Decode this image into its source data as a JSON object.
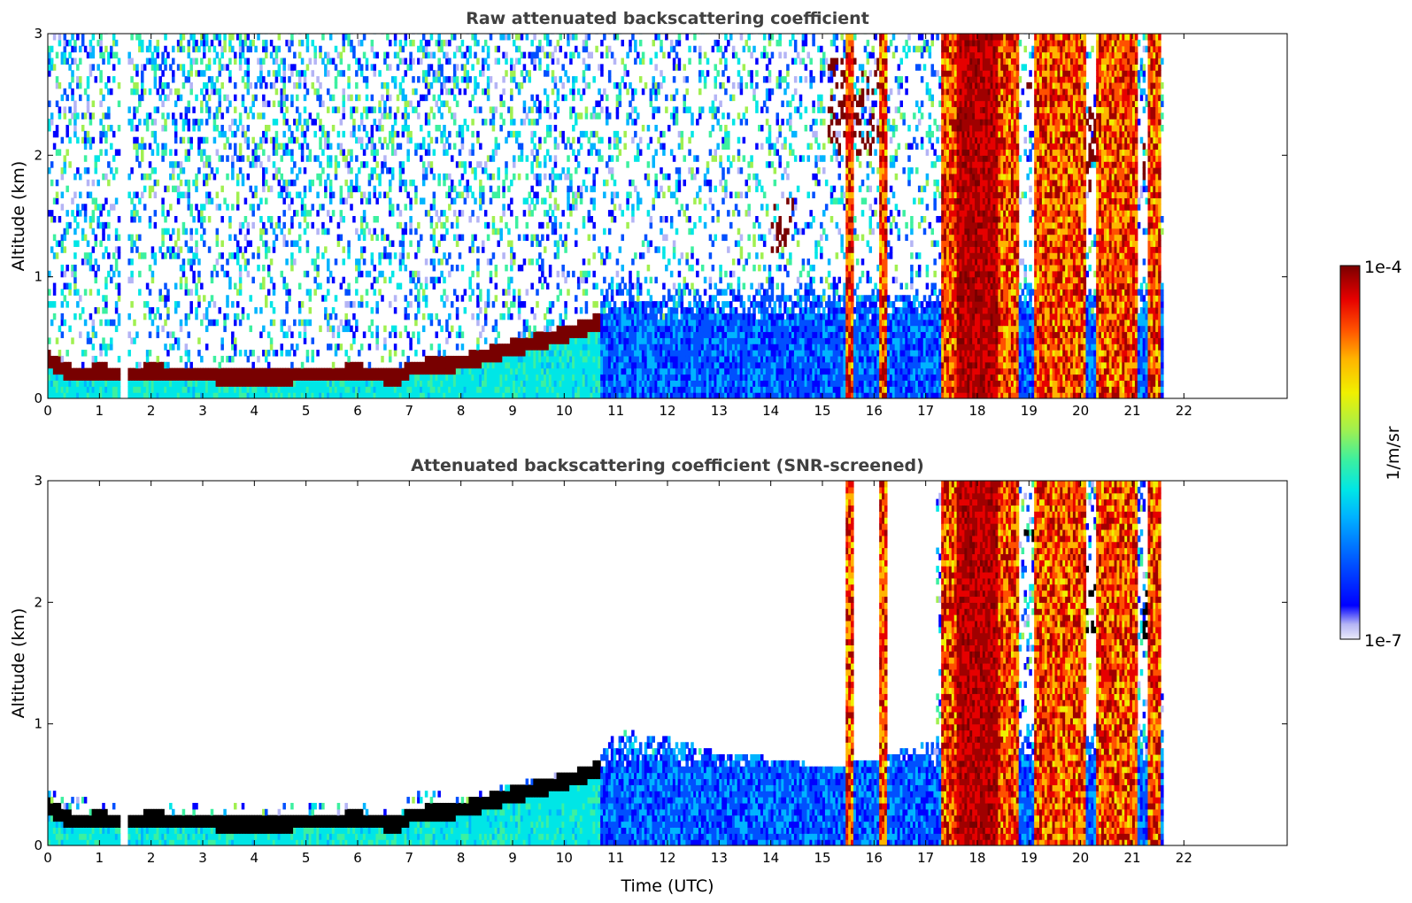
{
  "colors": {
    "colormap": [
      "#ebebfa",
      "#b4b4f5",
      "#0000ff",
      "#0050ff",
      "#00b4ff",
      "#00e6e6",
      "#3cf0a0",
      "#a0f050",
      "#f0f000",
      "#ffb400",
      "#ff5000",
      "#e60000",
      "#a00000",
      "#780000"
    ],
    "saturated_screened": "#000000",
    "title_color": "#404040"
  },
  "colorbar": {
    "max_label": "1e-4",
    "min_label": "1e-7",
    "unit_label": "1/m/sr"
  },
  "chart_data": [
    {
      "type": "heatmap",
      "title": "Raw attenuated backscattering coefficient",
      "xlabel": "",
      "ylabel": "Altitude (km)",
      "xlim": [
        0,
        24
      ],
      "ylim": [
        0,
        3
      ],
      "x_ticks": [
        "0",
        "1",
        "2",
        "3",
        "4",
        "5",
        "6",
        "7",
        "8",
        "9",
        "10",
        "11",
        "12",
        "13",
        "14",
        "15",
        "16",
        "17",
        "18",
        "19",
        "20",
        "21",
        "22"
      ],
      "y_ticks": [
        "0",
        "1",
        "2",
        "3"
      ],
      "colorscale": "log10",
      "value_range": [
        1e-07,
        0.0001
      ],
      "data_end_time": 21.6,
      "features": {
        "boundary_layer_top_km": [
          [
            0,
            0.33
          ],
          [
            0.1,
            0.3
          ],
          [
            0.5,
            0.2
          ],
          [
            1.0,
            0.22
          ],
          [
            1.5,
            0.2
          ],
          [
            2.0,
            0.22
          ],
          [
            3.0,
            0.2
          ],
          [
            4.0,
            0.18
          ],
          [
            5.0,
            0.2
          ],
          [
            6.0,
            0.22
          ],
          [
            6.8,
            0.18
          ],
          [
            7.0,
            0.25
          ],
          [
            8.0,
            0.3
          ],
          [
            9.0,
            0.42
          ],
          [
            10.0,
            0.53
          ],
          [
            10.6,
            0.62
          ]
        ],
        "gap_hours": [
          [
            1.4,
            1.55
          ]
        ],
        "cloud_layers": [
          {
            "x0": 14.0,
            "x1": 14.5,
            "y0": 1.2,
            "y1": 1.7
          },
          {
            "x0": 15.1,
            "x1": 16.2,
            "y0": 2.0,
            "y1": 2.8
          },
          {
            "x0": 17.3,
            "x1": 17.5,
            "y0": 2.2,
            "y1": 2.5
          },
          {
            "x0": 18.9,
            "x1": 19.1,
            "y0": 2.5,
            "y1": 2.6
          },
          {
            "x0": 19.5,
            "x1": 21.0,
            "y0": 1.7,
            "y1": 2.4
          },
          {
            "x0": 21.2,
            "x1": 21.5,
            "y0": 1.6,
            "y1": 2.1
          }
        ],
        "precip_shafts_hours": [
          [
            15.45,
            15.6
          ],
          [
            16.1,
            16.25
          ],
          [
            17.3,
            18.8
          ],
          [
            19.1,
            20.1
          ],
          [
            20.3,
            21.1
          ],
          [
            21.3,
            21.55
          ]
        ]
      }
    },
    {
      "type": "heatmap",
      "title": "Attenuated backscattering coefficient (SNR-screened)",
      "xlabel": "Time (UTC)",
      "ylabel": "Altitude (km)",
      "xlim": [
        0,
        24
      ],
      "ylim": [
        0,
        3
      ],
      "x_ticks": [
        "0",
        "1",
        "2",
        "3",
        "4",
        "5",
        "6",
        "7",
        "8",
        "9",
        "10",
        "11",
        "12",
        "13",
        "14",
        "15",
        "16",
        "17",
        "18",
        "19",
        "20",
        "21",
        "22"
      ],
      "y_ticks": [
        "0",
        "1",
        "2",
        "3"
      ],
      "colorscale": "log10",
      "value_range": [
        1e-07,
        0.0001
      ],
      "data_end_time": 21.6,
      "features": {
        "screened_signal_top_km": [
          [
            0,
            0.45
          ],
          [
            1.0,
            0.35
          ],
          [
            2.0,
            0.35
          ],
          [
            3.0,
            0.35
          ],
          [
            4.0,
            0.32
          ],
          [
            5.0,
            0.33
          ],
          [
            6.0,
            0.35
          ],
          [
            6.8,
            0.3
          ],
          [
            7.0,
            0.42
          ],
          [
            8.0,
            0.45
          ],
          [
            9.0,
            0.52
          ],
          [
            10.0,
            0.6
          ],
          [
            10.6,
            0.68
          ],
          [
            11.0,
            0.95
          ],
          [
            12.0,
            0.9
          ],
          [
            13.0,
            0.75
          ],
          [
            14.0,
            0.72
          ],
          [
            15.0,
            0.65
          ],
          [
            16.0,
            0.7
          ],
          [
            17.0,
            0.85
          ]
        ]
      }
    }
  ]
}
